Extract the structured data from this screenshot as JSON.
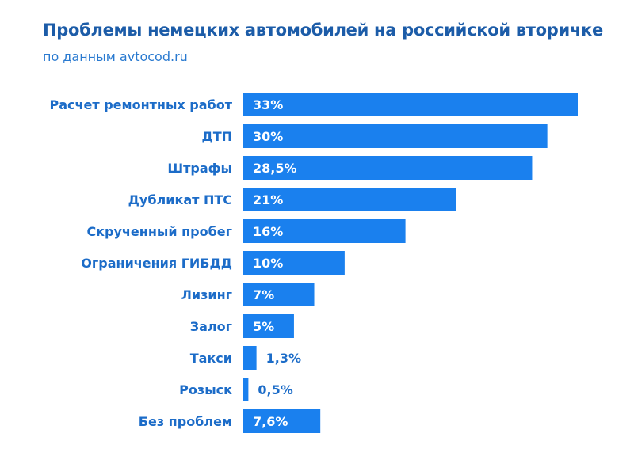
{
  "chart_data": {
    "type": "bar",
    "orientation": "horizontal",
    "title": "Проблемы немецких автомобилей на российской вторичке",
    "subtitle": "по данным avtocod.ru",
    "categories": [
      "Расчет ремонтных работ",
      "ДТП",
      "Штрафы",
      "Дубликат ПТС",
      "Скрученный пробег",
      "Ограничения ГИБДД",
      "Лизинг",
      "Залог",
      "Такси",
      "Розыск",
      "Без проблем"
    ],
    "values": [
      33,
      30,
      28.5,
      21,
      16,
      10,
      7,
      5,
      1.3,
      0.5,
      7.6
    ],
    "data_labels": [
      "33%",
      "30%",
      "28,5%",
      "21%",
      "16%",
      "10%",
      "7%",
      "5%",
      "1,3%",
      "0,5%",
      "7,6%"
    ],
    "xlim": [
      0,
      33
    ],
    "grid": false,
    "colors": {
      "bar": "#1a80ee",
      "label": "#1c6cc8",
      "title": "#1c5ca8"
    }
  }
}
